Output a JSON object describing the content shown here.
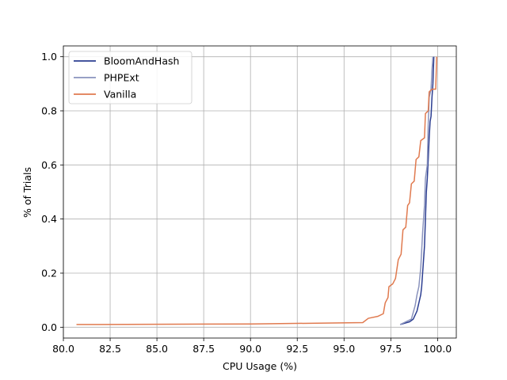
{
  "chart_data": {
    "type": "line",
    "title": "",
    "xlabel": "CPU Usage (%)",
    "ylabel": "% of Trials",
    "xlim": [
      80,
      101
    ],
    "ylim": [
      -0.04,
      1.04
    ],
    "xticks": [
      80.0,
      82.5,
      85.0,
      87.5,
      90.0,
      92.5,
      95.0,
      97.5,
      100.0
    ],
    "xtick_labels": [
      "80.0",
      "82.5",
      "85.0",
      "87.5",
      "90.0",
      "92.5",
      "95.0",
      "97.5",
      "100.0"
    ],
    "yticks": [
      0.0,
      0.2,
      0.4,
      0.6,
      0.8,
      1.0
    ],
    "ytick_labels": [
      "0.0",
      "0.2",
      "0.4",
      "0.6",
      "0.8",
      "1.0"
    ],
    "grid": true,
    "legend_position": "top-left",
    "series": [
      {
        "name": "BloomAndHash",
        "color": "#2c3e91",
        "points": [
          [
            98.0,
            0.01
          ],
          [
            98.5,
            0.02
          ],
          [
            98.7,
            0.03
          ],
          [
            98.9,
            0.06
          ],
          [
            99.0,
            0.09
          ],
          [
            99.1,
            0.12
          ],
          [
            99.15,
            0.15
          ],
          [
            99.2,
            0.2
          ],
          [
            99.25,
            0.25
          ],
          [
            99.3,
            0.3
          ],
          [
            99.35,
            0.4
          ],
          [
            99.4,
            0.5
          ],
          [
            99.45,
            0.55
          ],
          [
            99.5,
            0.62
          ],
          [
            99.55,
            0.7
          ],
          [
            99.6,
            0.76
          ],
          [
            99.65,
            0.78
          ],
          [
            99.7,
            0.85
          ],
          [
            99.75,
            0.9
          ],
          [
            99.8,
            1.0
          ]
        ]
      },
      {
        "name": "PHPExt",
        "color": "#8a93bd",
        "points": [
          [
            98.0,
            0.01
          ],
          [
            98.6,
            0.03
          ],
          [
            98.8,
            0.08
          ],
          [
            98.9,
            0.12
          ],
          [
            99.0,
            0.15
          ],
          [
            99.1,
            0.22
          ],
          [
            99.2,
            0.35
          ],
          [
            99.3,
            0.45
          ],
          [
            99.35,
            0.55
          ],
          [
            99.45,
            0.6
          ],
          [
            99.5,
            0.75
          ],
          [
            99.55,
            0.85
          ],
          [
            99.65,
            0.88
          ],
          [
            99.7,
            0.95
          ],
          [
            99.75,
            1.0
          ]
        ]
      },
      {
        "name": "Vanilla",
        "color": "#e07a4f",
        "points": [
          [
            80.7,
            0.01
          ],
          [
            90.0,
            0.012
          ],
          [
            96.0,
            0.017
          ],
          [
            96.3,
            0.033
          ],
          [
            96.8,
            0.04
          ],
          [
            97.1,
            0.05
          ],
          [
            97.2,
            0.09
          ],
          [
            97.35,
            0.11
          ],
          [
            97.4,
            0.15
          ],
          [
            97.6,
            0.16
          ],
          [
            97.75,
            0.18
          ],
          [
            97.9,
            0.25
          ],
          [
            98.05,
            0.27
          ],
          [
            98.15,
            0.36
          ],
          [
            98.3,
            0.37
          ],
          [
            98.4,
            0.45
          ],
          [
            98.5,
            0.46
          ],
          [
            98.6,
            0.53
          ],
          [
            98.75,
            0.54
          ],
          [
            98.85,
            0.62
          ],
          [
            99.0,
            0.63
          ],
          [
            99.1,
            0.69
          ],
          [
            99.3,
            0.7
          ],
          [
            99.35,
            0.79
          ],
          [
            99.5,
            0.8
          ],
          [
            99.55,
            0.87
          ],
          [
            99.7,
            0.88
          ],
          [
            99.9,
            0.88
          ],
          [
            99.95,
            1.0
          ]
        ]
      }
    ]
  }
}
